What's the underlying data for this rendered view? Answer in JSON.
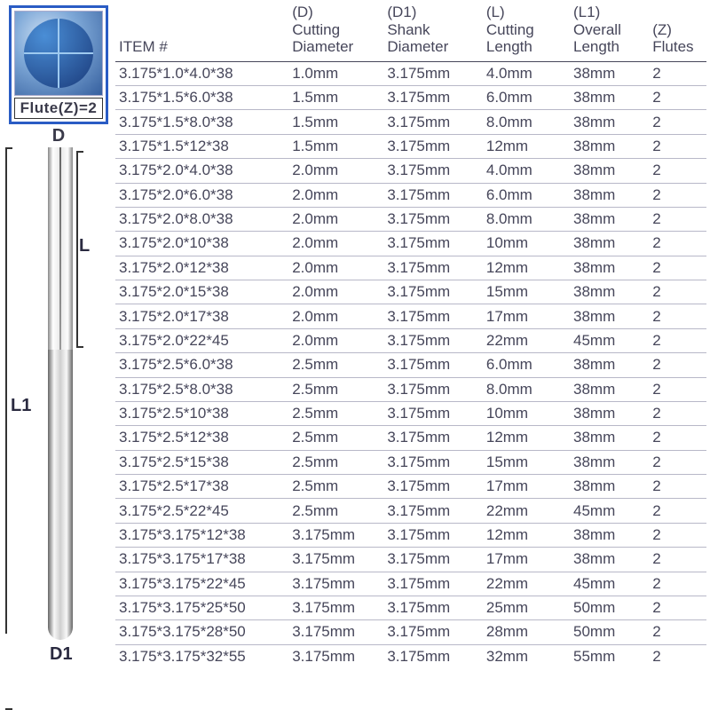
{
  "diagram": {
    "flute_label": "Flute(Z)=2",
    "D": "D",
    "L": "L",
    "L1": "L1",
    "D1": "D1"
  },
  "headers": {
    "item": "ITEM #",
    "d_top": "(D)",
    "d_bot1": "Cutting",
    "d_bot2": "Diameter",
    "d1_top": "(D1)",
    "d1_bot1": "Shank",
    "d1_bot2": "Diameter",
    "l_top": "(L)",
    "l_bot1": "Cutting",
    "l_bot2": "Length",
    "l1_top": "(L1)",
    "l1_bot1": "Overall",
    "l1_bot2": "Length",
    "z_top": "(Z)",
    "z_bot": "Flutes"
  },
  "rows": [
    {
      "item": "3.175*1.0*4.0*38",
      "d": "1.0mm",
      "d1": "3.175mm",
      "l": "4.0mm",
      "l1": "38mm",
      "z": "2"
    },
    {
      "item": "3.175*1.5*6.0*38",
      "d": "1.5mm",
      "d1": "3.175mm",
      "l": "6.0mm",
      "l1": "38mm",
      "z": "2"
    },
    {
      "item": "3.175*1.5*8.0*38",
      "d": "1.5mm",
      "d1": "3.175mm",
      "l": "8.0mm",
      "l1": "38mm",
      "z": "2"
    },
    {
      "item": "3.175*1.5*12*38",
      "d": "1.5mm",
      "d1": "3.175mm",
      "l": "12mm",
      "l1": "38mm",
      "z": "2"
    },
    {
      "item": "3.175*2.0*4.0*38",
      "d": "2.0mm",
      "d1": "3.175mm",
      "l": "4.0mm",
      "l1": "38mm",
      "z": "2"
    },
    {
      "item": "3.175*2.0*6.0*38",
      "d": "2.0mm",
      "d1": "3.175mm",
      "l": "6.0mm",
      "l1": "38mm",
      "z": "2"
    },
    {
      "item": "3.175*2.0*8.0*38",
      "d": "2.0mm",
      "d1": "3.175mm",
      "l": "8.0mm",
      "l1": "38mm",
      "z": "2"
    },
    {
      "item": "3.175*2.0*10*38",
      "d": "2.0mm",
      "d1": "3.175mm",
      "l": "10mm",
      "l1": "38mm",
      "z": "2"
    },
    {
      "item": "3.175*2.0*12*38",
      "d": "2.0mm",
      "d1": "3.175mm",
      "l": "12mm",
      "l1": "38mm",
      "z": "2"
    },
    {
      "item": "3.175*2.0*15*38",
      "d": "2.0mm",
      "d1": "3.175mm",
      "l": "15mm",
      "l1": "38mm",
      "z": "2"
    },
    {
      "item": "3.175*2.0*17*38",
      "d": "2.0mm",
      "d1": "3.175mm",
      "l": "17mm",
      "l1": "38mm",
      "z": "2"
    },
    {
      "item": "3.175*2.0*22*45",
      "d": "2.0mm",
      "d1": "3.175mm",
      "l": "22mm",
      "l1": "45mm",
      "z": "2"
    },
    {
      "item": "3.175*2.5*6.0*38",
      "d": "2.5mm",
      "d1": "3.175mm",
      "l": "6.0mm",
      "l1": "38mm",
      "z": "2"
    },
    {
      "item": "3.175*2.5*8.0*38",
      "d": "2.5mm",
      "d1": "3.175mm",
      "l": "8.0mm",
      "l1": "38mm",
      "z": "2"
    },
    {
      "item": "3.175*2.5*10*38",
      "d": "2.5mm",
      "d1": "3.175mm",
      "l": "10mm",
      "l1": "38mm",
      "z": "2"
    },
    {
      "item": "3.175*2.5*12*38",
      "d": "2.5mm",
      "d1": "3.175mm",
      "l": "12mm",
      "l1": "38mm",
      "z": "2"
    },
    {
      "item": "3.175*2.5*15*38",
      "d": "2.5mm",
      "d1": "3.175mm",
      "l": "15mm",
      "l1": "38mm",
      "z": "2"
    },
    {
      "item": "3.175*2.5*17*38",
      "d": "2.5mm",
      "d1": "3.175mm",
      "l": "17mm",
      "l1": "38mm",
      "z": "2"
    },
    {
      "item": "3.175*2.5*22*45",
      "d": "2.5mm",
      "d1": "3.175mm",
      "l": "22mm",
      "l1": "45mm",
      "z": "2"
    },
    {
      "item": "3.175*3.175*12*38",
      "d": "3.175mm",
      "d1": "3.175mm",
      "l": "12mm",
      "l1": "38mm",
      "z": "2"
    },
    {
      "item": "3.175*3.175*17*38",
      "d": "3.175mm",
      "d1": "3.175mm",
      "l": "17mm",
      "l1": "38mm",
      "z": "2"
    },
    {
      "item": "3.175*3.175*22*45",
      "d": "3.175mm",
      "d1": "3.175mm",
      "l": "22mm",
      "l1": "45mm",
      "z": "2"
    },
    {
      "item": "3.175*3.175*25*50",
      "d": "3.175mm",
      "d1": "3.175mm",
      "l": "25mm",
      "l1": "50mm",
      "z": "2"
    },
    {
      "item": "3.175*3.175*28*50",
      "d": "3.175mm",
      "d1": "3.175mm",
      "l": "28mm",
      "l1": "50mm",
      "z": "2"
    },
    {
      "item": "3.175*3.175*32*55",
      "d": "3.175mm",
      "d1": "3.175mm",
      "l": "32mm",
      "l1": "55mm",
      "z": "2"
    }
  ]
}
